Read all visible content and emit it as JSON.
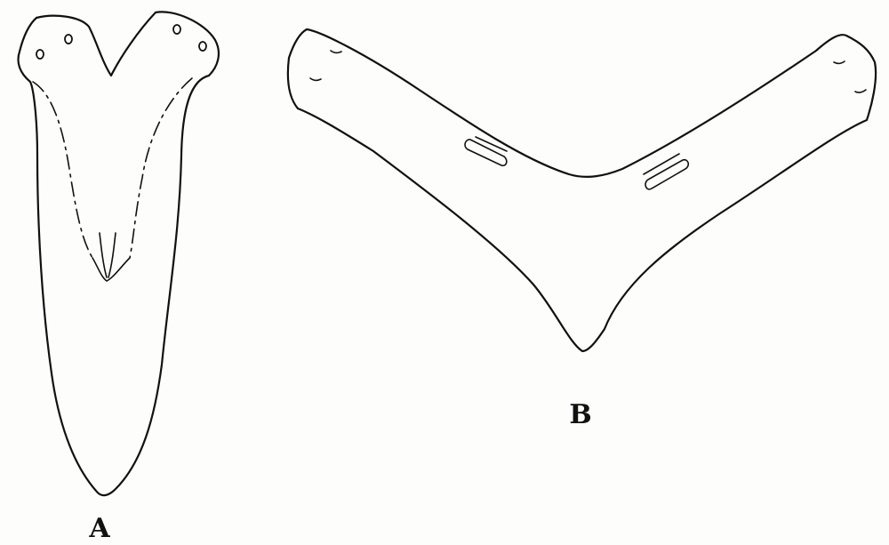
{
  "labels": {
    "a": "A",
    "b": "B"
  },
  "colors": {
    "ink": "#111111",
    "paper": "#fdfdfc"
  }
}
